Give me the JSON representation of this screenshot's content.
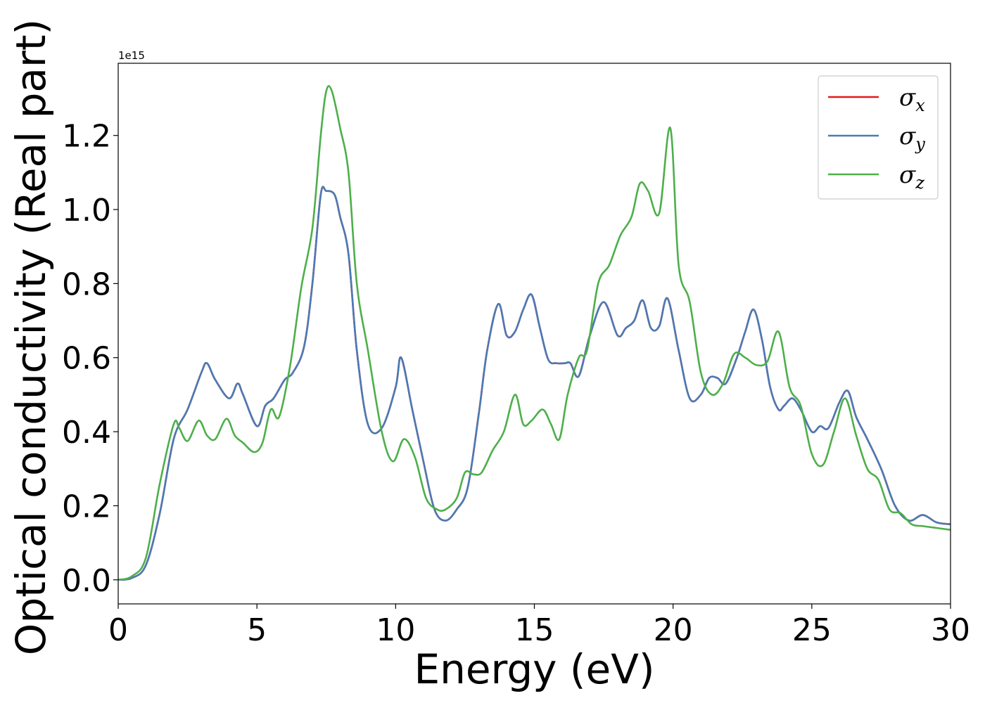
{
  "chart_data": {
    "type": "line",
    "xlabel": "Energy (eV)",
    "ylabel": "Optical conductivity (Real part)",
    "offset_text": "1e15",
    "xlim": [
      0,
      30
    ],
    "ylim": [
      -0.065,
      1.395
    ],
    "y_scale_multiplier": 1000000000000000.0,
    "xticks": [
      0,
      5,
      10,
      15,
      20,
      25,
      30
    ],
    "xtick_labels": [
      "0",
      "5",
      "10",
      "15",
      "20",
      "25",
      "30"
    ],
    "yticks": [
      0.0,
      0.2,
      0.4,
      0.6,
      0.8,
      1.0,
      1.2
    ],
    "ytick_labels": [
      "0.0",
      "0.2",
      "0.4",
      "0.6",
      "0.8",
      "1.0",
      "1.2"
    ],
    "grid": false,
    "legend_position": "top-right",
    "series": [
      {
        "name": "σx",
        "symbol": "σ",
        "subscript": "x",
        "color": "#e41a1c",
        "x": [
          0,
          0.5,
          1.0,
          1.5,
          2.0,
          2.5,
          3.0,
          3.2,
          3.5,
          4.0,
          4.3,
          4.5,
          5.0,
          5.3,
          5.6,
          6.0,
          6.3,
          6.7,
          7.0,
          7.3,
          7.5,
          7.8,
          8.0,
          8.3,
          8.6,
          9.0,
          9.5,
          10.0,
          10.2,
          10.6,
          11.0,
          11.4,
          11.8,
          12.2,
          12.6,
          13.0,
          13.3,
          13.7,
          14.0,
          14.3,
          14.6,
          14.9,
          15.2,
          15.5,
          15.8,
          16.1,
          16.3,
          16.6,
          17.0,
          17.5,
          18.0,
          18.3,
          18.6,
          18.9,
          19.2,
          19.5,
          19.8,
          20.2,
          20.6,
          21.0,
          21.3,
          21.6,
          21.9,
          22.3,
          22.6,
          22.9,
          23.2,
          23.5,
          23.8,
          24.0,
          24.3,
          24.6,
          25.0,
          25.3,
          25.6,
          26.0,
          26.3,
          26.6,
          27.0,
          27.5,
          28.0,
          28.5,
          29.0,
          29.5,
          30.0
        ],
        "y": [
          0.0,
          0.005,
          0.04,
          0.18,
          0.38,
          0.46,
          0.56,
          0.585,
          0.54,
          0.49,
          0.53,
          0.5,
          0.415,
          0.47,
          0.49,
          0.54,
          0.56,
          0.63,
          0.8,
          1.04,
          1.05,
          1.04,
          0.98,
          0.88,
          0.62,
          0.42,
          0.41,
          0.52,
          0.6,
          0.46,
          0.32,
          0.19,
          0.16,
          0.19,
          0.25,
          0.45,
          0.62,
          0.745,
          0.66,
          0.67,
          0.73,
          0.77,
          0.68,
          0.595,
          0.585,
          0.585,
          0.585,
          0.55,
          0.66,
          0.75,
          0.66,
          0.68,
          0.7,
          0.755,
          0.68,
          0.685,
          0.76,
          0.62,
          0.49,
          0.5,
          0.545,
          0.545,
          0.53,
          0.6,
          0.67,
          0.73,
          0.65,
          0.52,
          0.46,
          0.47,
          0.49,
          0.46,
          0.4,
          0.415,
          0.41,
          0.48,
          0.51,
          0.44,
          0.38,
          0.3,
          0.2,
          0.16,
          0.175,
          0.155,
          0.15
        ]
      },
      {
        "name": "σy",
        "symbol": "σ",
        "subscript": "y",
        "color": "#4a7ab5",
        "x": [
          0,
          0.5,
          1.0,
          1.5,
          2.0,
          2.5,
          3.0,
          3.2,
          3.5,
          4.0,
          4.3,
          4.5,
          5.0,
          5.3,
          5.6,
          6.0,
          6.3,
          6.7,
          7.0,
          7.3,
          7.5,
          7.8,
          8.0,
          8.3,
          8.6,
          9.0,
          9.5,
          10.0,
          10.2,
          10.6,
          11.0,
          11.4,
          11.8,
          12.2,
          12.6,
          13.0,
          13.3,
          13.7,
          14.0,
          14.3,
          14.6,
          14.9,
          15.2,
          15.5,
          15.8,
          16.1,
          16.3,
          16.6,
          17.0,
          17.5,
          18.0,
          18.3,
          18.6,
          18.9,
          19.2,
          19.5,
          19.8,
          20.2,
          20.6,
          21.0,
          21.3,
          21.6,
          21.9,
          22.3,
          22.6,
          22.9,
          23.2,
          23.5,
          23.8,
          24.0,
          24.3,
          24.6,
          25.0,
          25.3,
          25.6,
          26.0,
          26.3,
          26.6,
          27.0,
          27.5,
          28.0,
          28.5,
          29.0,
          29.5,
          30.0
        ],
        "y": [
          0.0,
          0.005,
          0.04,
          0.18,
          0.38,
          0.46,
          0.56,
          0.585,
          0.54,
          0.49,
          0.53,
          0.5,
          0.415,
          0.47,
          0.49,
          0.54,
          0.56,
          0.63,
          0.8,
          1.04,
          1.05,
          1.04,
          0.98,
          0.88,
          0.62,
          0.42,
          0.41,
          0.52,
          0.6,
          0.46,
          0.32,
          0.19,
          0.16,
          0.19,
          0.25,
          0.45,
          0.62,
          0.745,
          0.66,
          0.67,
          0.73,
          0.77,
          0.68,
          0.595,
          0.585,
          0.585,
          0.585,
          0.55,
          0.66,
          0.75,
          0.66,
          0.68,
          0.7,
          0.755,
          0.68,
          0.685,
          0.76,
          0.62,
          0.49,
          0.5,
          0.545,
          0.545,
          0.53,
          0.6,
          0.67,
          0.73,
          0.65,
          0.52,
          0.46,
          0.47,
          0.49,
          0.46,
          0.4,
          0.415,
          0.41,
          0.48,
          0.51,
          0.44,
          0.38,
          0.3,
          0.2,
          0.16,
          0.175,
          0.155,
          0.15
        ]
      },
      {
        "name": "σz",
        "symbol": "σ",
        "subscript": "z",
        "color": "#4daf4a",
        "x": [
          0,
          0.5,
          1.0,
          1.5,
          2.0,
          2.2,
          2.5,
          2.9,
          3.2,
          3.5,
          3.9,
          4.2,
          4.5,
          4.9,
          5.2,
          5.5,
          5.8,
          6.2,
          6.6,
          7.0,
          7.3,
          7.5,
          7.7,
          8.0,
          8.3,
          8.6,
          9.0,
          9.5,
          9.9,
          10.3,
          10.7,
          11.1,
          11.5,
          11.8,
          12.2,
          12.5,
          12.8,
          13.1,
          13.5,
          13.9,
          14.3,
          14.6,
          14.9,
          15.3,
          15.6,
          15.9,
          16.2,
          16.6,
          16.9,
          17.3,
          17.7,
          18.1,
          18.5,
          18.8,
          19.1,
          19.5,
          19.9,
          20.2,
          20.6,
          21.0,
          21.4,
          21.8,
          22.2,
          22.6,
          23.0,
          23.4,
          23.8,
          24.2,
          24.6,
          25.0,
          25.4,
          25.8,
          26.2,
          26.6,
          27.0,
          27.4,
          27.8,
          28.2,
          28.6,
          29.0,
          29.5,
          30.0
        ],
        "y": [
          0.0,
          0.01,
          0.06,
          0.26,
          0.42,
          0.41,
          0.375,
          0.43,
          0.39,
          0.38,
          0.435,
          0.39,
          0.37,
          0.345,
          0.37,
          0.46,
          0.44,
          0.58,
          0.79,
          0.95,
          1.2,
          1.32,
          1.32,
          1.22,
          1.1,
          0.8,
          0.62,
          0.4,
          0.32,
          0.38,
          0.33,
          0.22,
          0.19,
          0.19,
          0.22,
          0.29,
          0.285,
          0.29,
          0.35,
          0.4,
          0.5,
          0.42,
          0.43,
          0.46,
          0.42,
          0.38,
          0.5,
          0.6,
          0.62,
          0.8,
          0.85,
          0.93,
          0.98,
          1.07,
          1.05,
          0.99,
          1.22,
          0.85,
          0.75,
          0.56,
          0.5,
          0.53,
          0.61,
          0.6,
          0.58,
          0.59,
          0.67,
          0.52,
          0.47,
          0.34,
          0.31,
          0.4,
          0.49,
          0.39,
          0.3,
          0.27,
          0.19,
          0.18,
          0.15,
          0.145,
          0.14,
          0.135
        ]
      }
    ]
  }
}
